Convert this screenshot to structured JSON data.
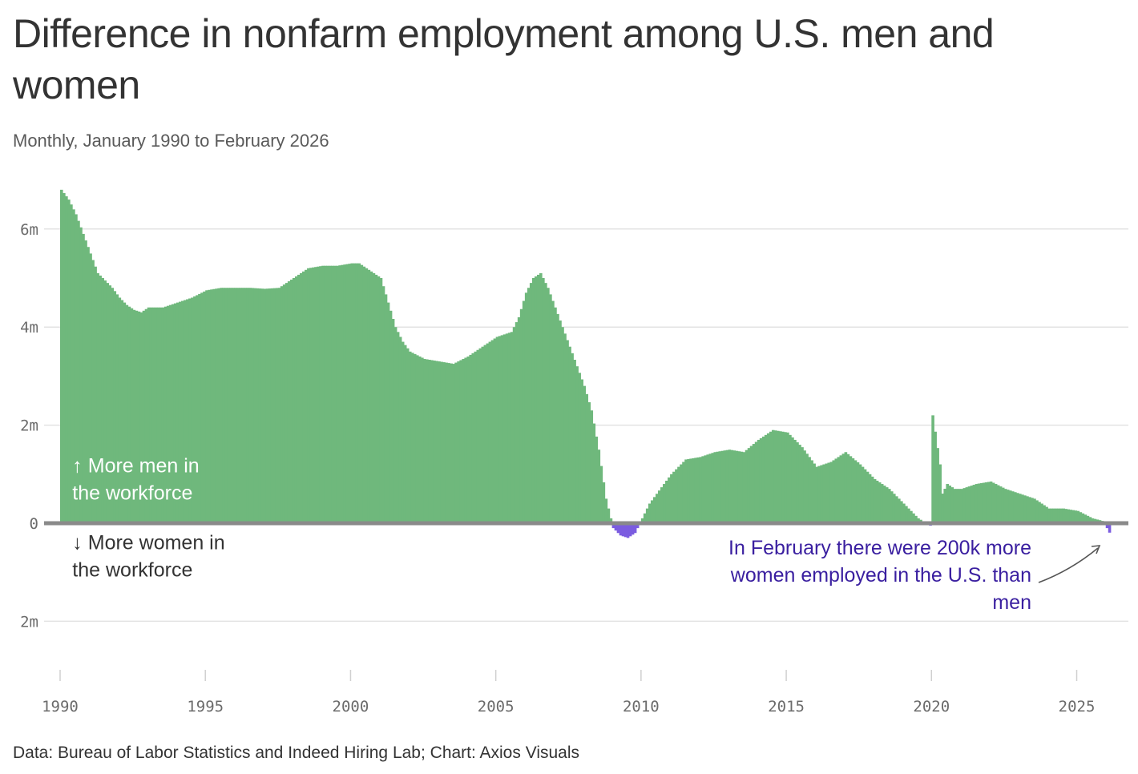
{
  "header": {
    "title": "Difference in nonfarm employment among U.S. men and women",
    "subtitle": "Monthly, January 1990 to February 2026"
  },
  "footer": {
    "source": "Data: Bureau of Labor Statistics and Indeed Hiring Lab; Chart: Axios Visuals"
  },
  "colors": {
    "positive": "#6fb87c",
    "negative": "#7b5ce0",
    "annotation": "#3a1fa0",
    "gridline": "#e3e3e3",
    "baseline": "#8a8a8a"
  },
  "chart_data": {
    "type": "area",
    "title": "Difference in nonfarm employment among U.S. men and women",
    "subtitle": "Monthly, January 1990 to February 2026",
    "xlabel": "",
    "ylabel": "",
    "xlim": [
      1990,
      2026.2
    ],
    "ylim": [
      -2,
      6.8
    ],
    "y_unit": "millions (men minus women)",
    "y_ticks": [
      {
        "value": 6,
        "label": "6m"
      },
      {
        "value": 4,
        "label": "4m"
      },
      {
        "value": 2,
        "label": "2m"
      },
      {
        "value": 0,
        "label": "0"
      },
      {
        "value": -2,
        "label": "2m"
      }
    ],
    "x_ticks": [
      {
        "value": 1990,
        "label": "1990"
      },
      {
        "value": 1995,
        "label": "1995"
      },
      {
        "value": 2000,
        "label": "2000"
      },
      {
        "value": 2005,
        "label": "2005"
      },
      {
        "value": 2010,
        "label": "2010"
      },
      {
        "value": 2015,
        "label": "2015"
      },
      {
        "value": 2020,
        "label": "2020"
      },
      {
        "value": 2025,
        "label": "2025"
      }
    ],
    "series": [
      {
        "name": "Men minus women employed (millions)",
        "x": [
          1990.0,
          1990.25,
          1990.5,
          1990.75,
          1991.0,
          1991.25,
          1991.5,
          1991.75,
          1992.0,
          1992.25,
          1992.5,
          1992.75,
          1993.0,
          1993.5,
          1994.0,
          1994.5,
          1995.0,
          1995.5,
          1996.0,
          1996.5,
          1997.0,
          1997.5,
          1998.0,
          1998.5,
          1999.0,
          1999.5,
          2000.0,
          2000.25,
          2000.5,
          2000.75,
          2001.0,
          2001.25,
          2001.5,
          2001.75,
          2002.0,
          2002.5,
          2003.0,
          2003.5,
          2004.0,
          2004.5,
          2005.0,
          2005.5,
          2005.75,
          2006.0,
          2006.25,
          2006.5,
          2006.75,
          2007.0,
          2007.25,
          2007.5,
          2007.75,
          2008.0,
          2008.25,
          2008.5,
          2008.75,
          2009.0,
          2009.25,
          2009.5,
          2009.75,
          2010.0,
          2010.25,
          2010.5,
          2010.75,
          2011.0,
          2011.5,
          2012.0,
          2012.5,
          2013.0,
          2013.5,
          2014.0,
          2014.5,
          2015.0,
          2015.5,
          2016.0,
          2016.5,
          2017.0,
          2017.5,
          2018.0,
          2018.5,
          2019.0,
          2019.5,
          2019.92,
          2020.0,
          2020.25,
          2020.33,
          2020.5,
          2020.75,
          2021.0,
          2021.5,
          2022.0,
          2022.5,
          2023.0,
          2023.5,
          2024.0,
          2024.5,
          2025.0,
          2025.5,
          2025.83,
          2026.0,
          2026.09
        ],
        "values": [
          6.8,
          6.6,
          6.3,
          5.9,
          5.5,
          5.1,
          4.95,
          4.8,
          4.6,
          4.45,
          4.35,
          4.3,
          4.4,
          4.4,
          4.5,
          4.6,
          4.75,
          4.8,
          4.8,
          4.8,
          4.78,
          4.8,
          5.0,
          5.2,
          5.25,
          5.25,
          5.3,
          5.3,
          5.2,
          5.1,
          5.0,
          4.5,
          4.0,
          3.7,
          3.5,
          3.35,
          3.3,
          3.25,
          3.4,
          3.6,
          3.8,
          3.9,
          4.2,
          4.7,
          5.0,
          5.1,
          4.8,
          4.4,
          4.0,
          3.6,
          3.2,
          2.8,
          2.3,
          1.5,
          0.5,
          -0.1,
          -0.25,
          -0.3,
          -0.2,
          0.1,
          0.4,
          0.6,
          0.8,
          1.0,
          1.3,
          1.35,
          1.45,
          1.5,
          1.45,
          1.7,
          1.9,
          1.85,
          1.55,
          1.15,
          1.25,
          1.45,
          1.2,
          0.9,
          0.7,
          0.4,
          0.1,
          -0.05,
          2.2,
          1.2,
          0.6,
          0.8,
          0.7,
          0.7,
          0.8,
          0.85,
          0.7,
          0.6,
          0.5,
          0.3,
          0.3,
          0.25,
          0.1,
          0.05,
          -0.1,
          -0.2
        ]
      }
    ],
    "annotations": [
      {
        "lines": [
          "↑ More men in",
          "the workforce"
        ],
        "x": 1990.45,
        "y": 1.1
      },
      {
        "lines": [
          "↓ More women in",
          "the workforce"
        ],
        "x": 1990.45,
        "y": -0.3
      },
      {
        "lines": [
          "In February there were 200k more",
          "women employed in the U.S. than",
          "men"
        ],
        "x": 2023.3,
        "y": -0.5
      }
    ]
  }
}
